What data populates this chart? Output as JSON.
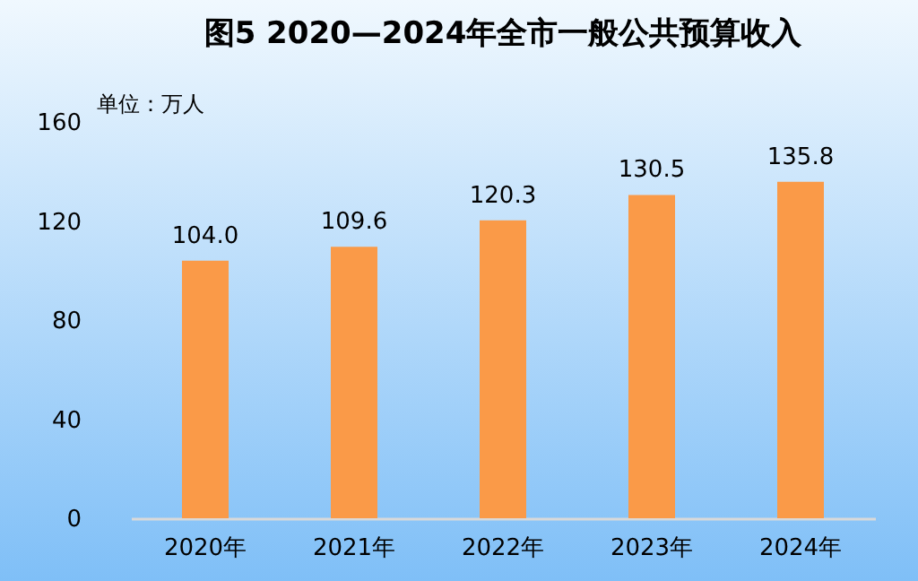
{
  "chart_data": {
    "type": "bar",
    "title": "图5  2020—2024年全市一般公共预算收入",
    "annotations": [
      "单位：万人"
    ],
    "categories": [
      "2020年",
      "2021年",
      "2022年",
      "2023年",
      "2024年"
    ],
    "values": [
      104.0,
      109.6,
      120.3,
      130.5,
      135.8
    ],
    "color": "#fa9a48",
    "ylim": [
      0,
      160
    ],
    "yticks": [
      0,
      40,
      80,
      120,
      160
    ],
    "value_labels": [
      "104.0",
      "109.6",
      "120.3",
      "130.5",
      "135.8"
    ],
    "grid": false
  }
}
